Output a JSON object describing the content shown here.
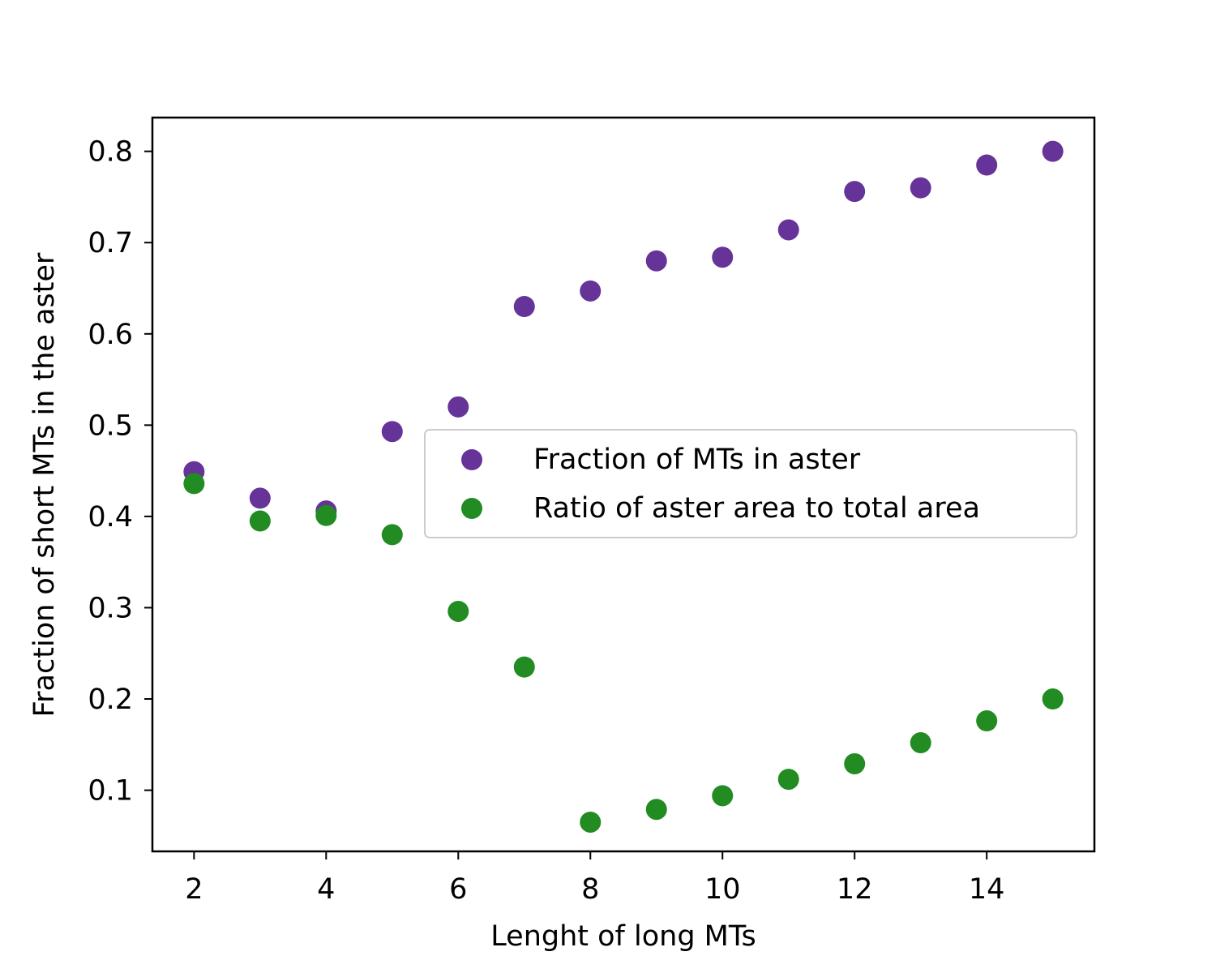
{
  "chart_data": {
    "type": "scatter",
    "title": "",
    "xlabel": "Lenght of long MTs",
    "ylabel": "Fraction of short MTs in the aster",
    "xlim": [
      1.37,
      15.63
    ],
    "ylim": [
      0.033,
      0.837
    ],
    "xticks": [
      2,
      4,
      6,
      8,
      10,
      12,
      14
    ],
    "xtick_labels": [
      "2",
      "4",
      "6",
      "8",
      "10",
      "12",
      "14"
    ],
    "yticks": [
      0.1,
      0.2,
      0.3,
      0.4,
      0.5,
      0.6,
      0.7,
      0.8
    ],
    "ytick_labels": [
      "0.1",
      "0.2",
      "0.3",
      "0.4",
      "0.5",
      "0.6",
      "0.7",
      "0.8"
    ],
    "grid": false,
    "legend_position": "center-right",
    "series": [
      {
        "name": "Fraction of MTs in aster",
        "color": "#663399",
        "x": [
          2,
          3,
          4,
          5,
          6,
          7,
          8,
          9,
          10,
          11,
          12,
          13,
          14,
          15
        ],
        "y": [
          0.449,
          0.42,
          0.406,
          0.493,
          0.52,
          0.63,
          0.647,
          0.68,
          0.684,
          0.714,
          0.756,
          0.76,
          0.785,
          0.8
        ]
      },
      {
        "name": "Ratio of aster area to total area",
        "color": "#228b22",
        "x": [
          2,
          3,
          4,
          5,
          6,
          7,
          8,
          9,
          10,
          11,
          12,
          13,
          14,
          15
        ],
        "y": [
          0.436,
          0.395,
          0.401,
          0.38,
          0.296,
          0.235,
          0.065,
          0.079,
          0.094,
          0.112,
          0.129,
          0.152,
          0.176,
          0.2
        ]
      }
    ]
  }
}
